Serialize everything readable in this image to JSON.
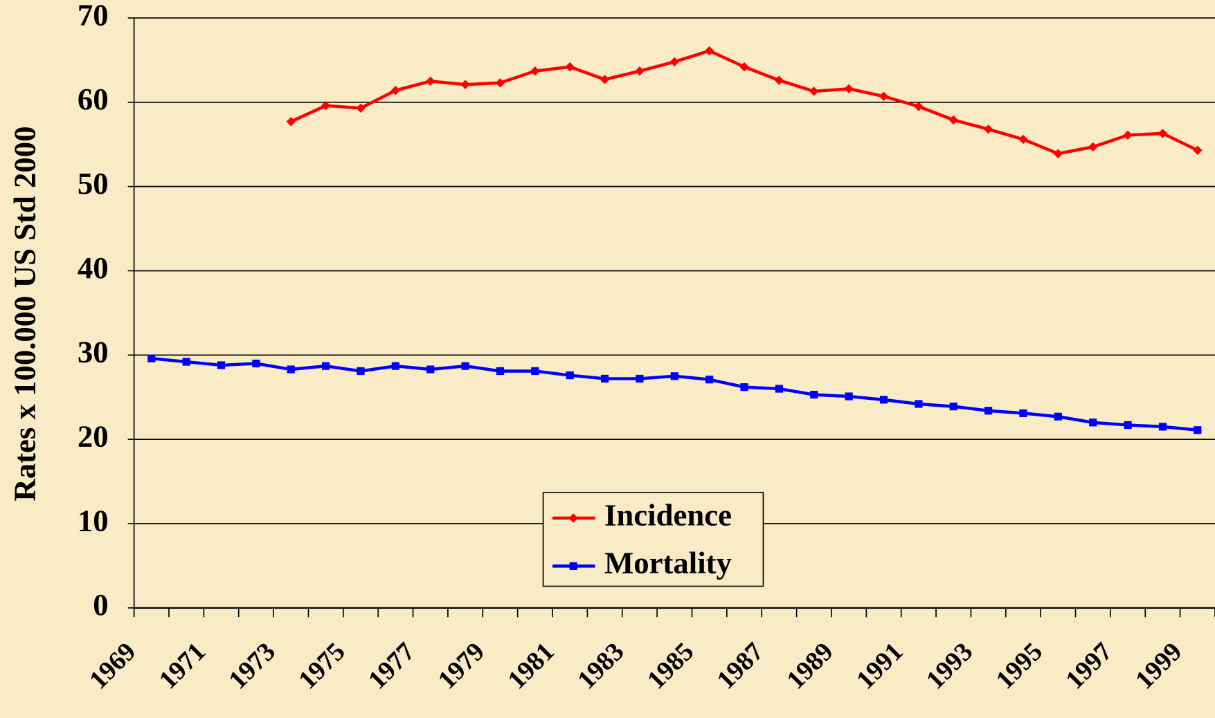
{
  "chart_data": {
    "type": "line",
    "y_label": "Rates  x 100.000 US Std 2000",
    "categories": [
      "1969",
      null,
      "1971",
      null,
      "1973",
      null,
      "1975",
      null,
      "1977",
      null,
      "1979",
      null,
      "1981",
      null,
      "1983",
      null,
      "1985",
      null,
      "1987",
      null,
      "1989",
      null,
      "1991",
      null,
      "1993",
      null,
      "1995",
      null,
      "1997",
      null,
      "1999"
    ],
    "series": [
      {
        "name": "Incidence",
        "color": "#ff0000",
        "marker": "diamond",
        "values": [
          null,
          null,
          null,
          null,
          57.7,
          59.6,
          59.3,
          61.4,
          62.5,
          62.1,
          62.3,
          63.7,
          64.2,
          62.7,
          63.7,
          64.8,
          66.1,
          64.2,
          62.6,
          61.3,
          61.6,
          60.7,
          59.5,
          57.9,
          56.8,
          55.6,
          53.9,
          54.7,
          56.1,
          56.3,
          54.3
        ]
      },
      {
        "name": "Mortality",
        "color": "#0000ff",
        "marker": "square",
        "values": [
          29.6,
          29.2,
          28.8,
          29.0,
          28.3,
          28.7,
          28.1,
          28.7,
          28.3,
          28.7,
          28.1,
          28.1,
          27.6,
          27.2,
          27.2,
          27.5,
          27.1,
          26.2,
          26.0,
          25.3,
          25.1,
          24.7,
          24.2,
          23.9,
          23.4,
          23.1,
          22.7,
          22.0,
          21.7,
          21.5,
          21.1
        ]
      }
    ],
    "ylim": [
      0,
      70
    ],
    "yticks": [
      0,
      10,
      20,
      30,
      40,
      50,
      60,
      70
    ],
    "grid": true,
    "legend": "bottom-center"
  }
}
